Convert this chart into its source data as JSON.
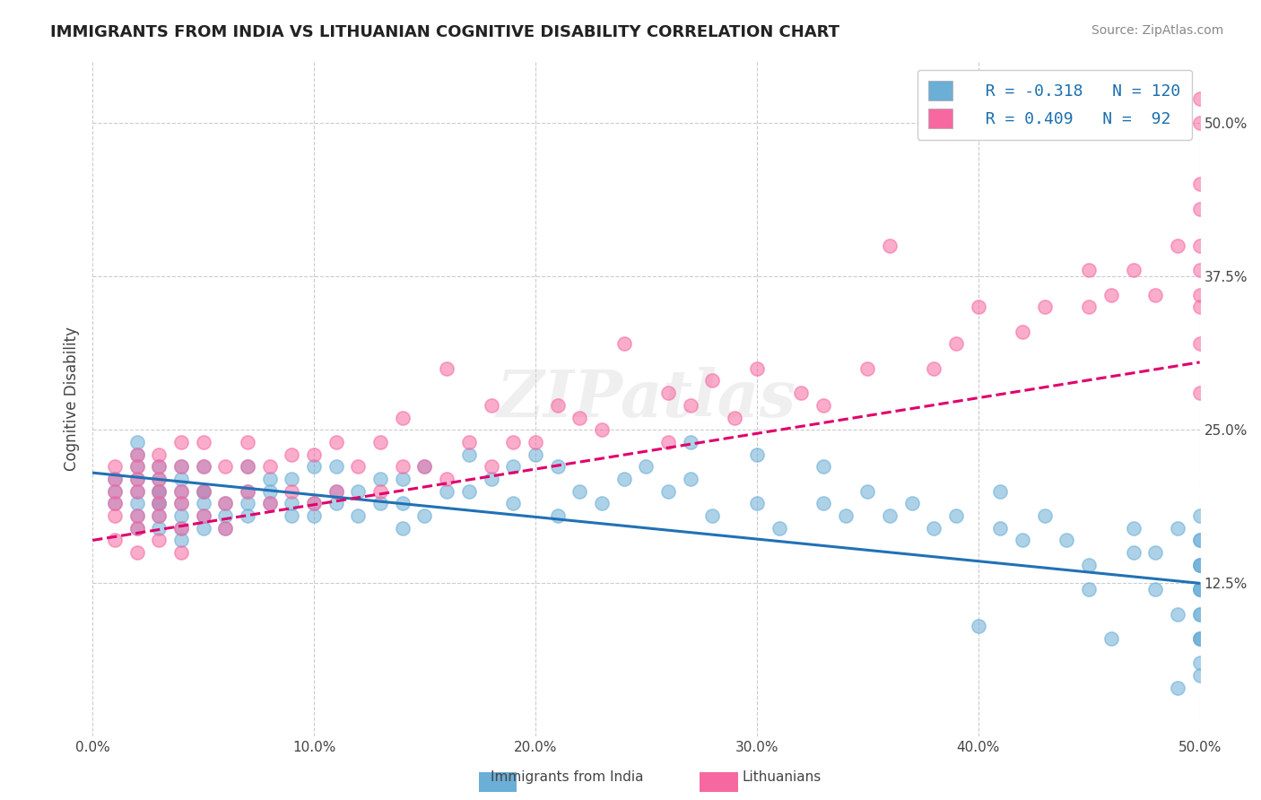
{
  "title": "IMMIGRANTS FROM INDIA VS LITHUANIAN COGNITIVE DISABILITY CORRELATION CHART",
  "source": "Source: ZipAtlas.com",
  "xlabel": "",
  "ylabel": "Cognitive Disability",
  "legend_labels": [
    "Immigrants from India",
    "Lithuanians"
  ],
  "legend_r": [
    "R = -0.318",
    "R = 0.409"
  ],
  "legend_n": [
    "N = 120",
    "N =  92"
  ],
  "xlim": [
    0.0,
    0.5
  ],
  "ylim": [
    0.0,
    0.55
  ],
  "xticks": [
    0.0,
    0.1,
    0.2,
    0.3,
    0.4,
    0.5
  ],
  "xticklabels": [
    "0.0%",
    "10.0%",
    "20.0%",
    "30.0%",
    "40.0%",
    "50.0%"
  ],
  "yticks_right": [
    0.125,
    0.25,
    0.375,
    0.5
  ],
  "yticklabels_right": [
    "12.5%",
    "25.0%",
    "37.5%",
    "50.0%"
  ],
  "blue_color": "#6baed6",
  "pink_color": "#f768a1",
  "blue_line_color": "#2171b5",
  "pink_line_color": "#e0006c",
  "watermark": "ZIPatlas",
  "background_color": "#ffffff",
  "grid_color": "#cccccc",
  "blue_scatter": {
    "x": [
      0.01,
      0.01,
      0.01,
      0.02,
      0.02,
      0.02,
      0.02,
      0.02,
      0.02,
      0.02,
      0.02,
      0.03,
      0.03,
      0.03,
      0.03,
      0.03,
      0.03,
      0.03,
      0.03,
      0.04,
      0.04,
      0.04,
      0.04,
      0.04,
      0.04,
      0.04,
      0.05,
      0.05,
      0.05,
      0.05,
      0.05,
      0.05,
      0.06,
      0.06,
      0.06,
      0.07,
      0.07,
      0.07,
      0.07,
      0.08,
      0.08,
      0.08,
      0.09,
      0.09,
      0.09,
      0.1,
      0.1,
      0.1,
      0.11,
      0.11,
      0.11,
      0.12,
      0.12,
      0.13,
      0.13,
      0.14,
      0.14,
      0.14,
      0.15,
      0.15,
      0.16,
      0.17,
      0.17,
      0.18,
      0.19,
      0.19,
      0.2,
      0.21,
      0.21,
      0.22,
      0.23,
      0.24,
      0.25,
      0.26,
      0.27,
      0.27,
      0.28,
      0.3,
      0.3,
      0.31,
      0.33,
      0.33,
      0.34,
      0.35,
      0.36,
      0.37,
      0.38,
      0.39,
      0.4,
      0.41,
      0.41,
      0.42,
      0.43,
      0.44,
      0.45,
      0.45,
      0.46,
      0.47,
      0.47,
      0.48,
      0.48,
      0.49,
      0.49,
      0.49,
      0.5,
      0.5,
      0.5,
      0.5,
      0.5,
      0.5,
      0.5,
      0.5,
      0.5,
      0.5,
      0.5,
      0.5,
      0.5,
      0.5,
      0.5,
      0.5
    ],
    "y": [
      0.19,
      0.2,
      0.21,
      0.17,
      0.18,
      0.19,
      0.2,
      0.21,
      0.22,
      0.23,
      0.24,
      0.17,
      0.18,
      0.19,
      0.19,
      0.2,
      0.2,
      0.21,
      0.22,
      0.16,
      0.17,
      0.18,
      0.19,
      0.2,
      0.21,
      0.22,
      0.17,
      0.18,
      0.19,
      0.2,
      0.2,
      0.22,
      0.17,
      0.18,
      0.19,
      0.18,
      0.19,
      0.2,
      0.22,
      0.19,
      0.2,
      0.21,
      0.18,
      0.19,
      0.21,
      0.18,
      0.19,
      0.22,
      0.19,
      0.2,
      0.22,
      0.18,
      0.2,
      0.19,
      0.21,
      0.17,
      0.19,
      0.21,
      0.18,
      0.22,
      0.2,
      0.2,
      0.23,
      0.21,
      0.19,
      0.22,
      0.23,
      0.18,
      0.22,
      0.2,
      0.19,
      0.21,
      0.22,
      0.2,
      0.21,
      0.24,
      0.18,
      0.19,
      0.23,
      0.17,
      0.19,
      0.22,
      0.18,
      0.2,
      0.18,
      0.19,
      0.17,
      0.18,
      0.09,
      0.17,
      0.2,
      0.16,
      0.18,
      0.16,
      0.12,
      0.14,
      0.08,
      0.15,
      0.17,
      0.12,
      0.15,
      0.04,
      0.1,
      0.17,
      0.08,
      0.1,
      0.12,
      0.14,
      0.16,
      0.18,
      0.05,
      0.08,
      0.1,
      0.12,
      0.14,
      0.06,
      0.08,
      0.12,
      0.14,
      0.16
    ]
  },
  "pink_scatter": {
    "x": [
      0.01,
      0.01,
      0.01,
      0.01,
      0.01,
      0.01,
      0.02,
      0.02,
      0.02,
      0.02,
      0.02,
      0.02,
      0.02,
      0.03,
      0.03,
      0.03,
      0.03,
      0.03,
      0.03,
      0.03,
      0.04,
      0.04,
      0.04,
      0.04,
      0.04,
      0.04,
      0.05,
      0.05,
      0.05,
      0.05,
      0.06,
      0.06,
      0.06,
      0.07,
      0.07,
      0.07,
      0.08,
      0.08,
      0.09,
      0.09,
      0.1,
      0.1,
      0.11,
      0.11,
      0.12,
      0.13,
      0.13,
      0.14,
      0.14,
      0.15,
      0.16,
      0.16,
      0.17,
      0.18,
      0.18,
      0.19,
      0.2,
      0.21,
      0.22,
      0.23,
      0.24,
      0.26,
      0.26,
      0.27,
      0.28,
      0.29,
      0.3,
      0.32,
      0.33,
      0.35,
      0.36,
      0.38,
      0.39,
      0.4,
      0.42,
      0.43,
      0.45,
      0.45,
      0.46,
      0.47,
      0.48,
      0.49,
      0.5,
      0.5,
      0.5,
      0.5,
      0.5,
      0.5,
      0.5,
      0.5,
      0.5,
      0.5
    ],
    "y": [
      0.16,
      0.18,
      0.19,
      0.2,
      0.21,
      0.22,
      0.15,
      0.17,
      0.18,
      0.2,
      0.21,
      0.22,
      0.23,
      0.16,
      0.18,
      0.19,
      0.2,
      0.21,
      0.22,
      0.23,
      0.15,
      0.17,
      0.19,
      0.2,
      0.22,
      0.24,
      0.18,
      0.2,
      0.22,
      0.24,
      0.17,
      0.19,
      0.22,
      0.2,
      0.22,
      0.24,
      0.19,
      0.22,
      0.2,
      0.23,
      0.19,
      0.23,
      0.2,
      0.24,
      0.22,
      0.2,
      0.24,
      0.22,
      0.26,
      0.22,
      0.21,
      0.3,
      0.24,
      0.22,
      0.27,
      0.24,
      0.24,
      0.27,
      0.26,
      0.25,
      0.32,
      0.24,
      0.28,
      0.27,
      0.29,
      0.26,
      0.3,
      0.28,
      0.27,
      0.3,
      0.4,
      0.3,
      0.32,
      0.35,
      0.33,
      0.35,
      0.35,
      0.38,
      0.36,
      0.38,
      0.36,
      0.4,
      0.28,
      0.32,
      0.35,
      0.4,
      0.43,
      0.45,
      0.5,
      0.52,
      0.36,
      0.38
    ]
  },
  "blue_trend": {
    "x_start": 0.0,
    "x_end": 0.5,
    "y_start": 0.215,
    "y_end": 0.125
  },
  "pink_trend": {
    "x_start": 0.0,
    "x_end": 0.5,
    "y_start": 0.16,
    "y_end": 0.305
  }
}
